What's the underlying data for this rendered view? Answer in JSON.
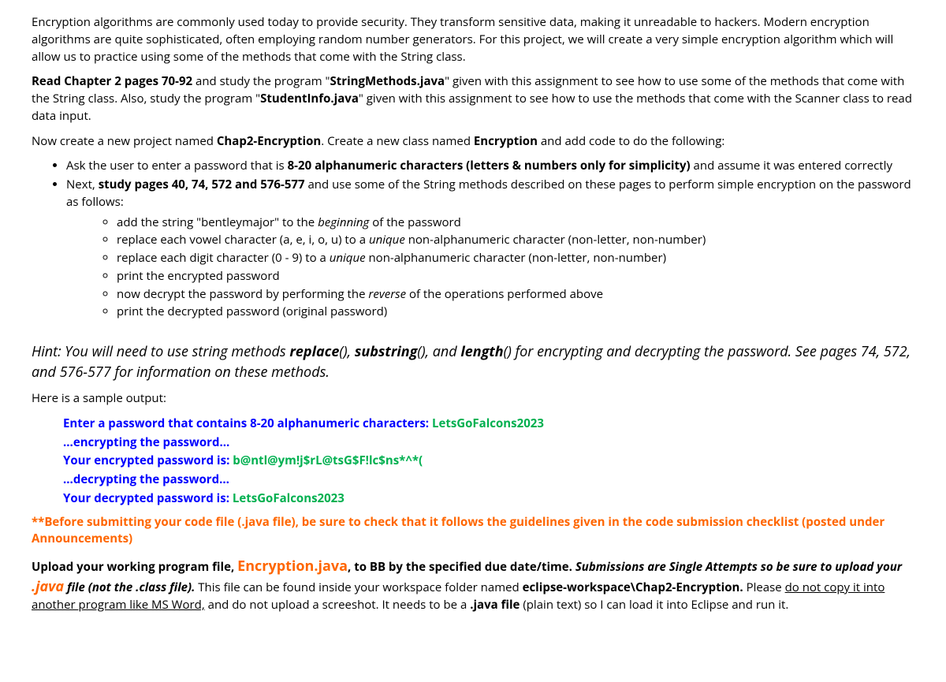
{
  "intro": {
    "p1": "Encryption algorithms are commonly used today to provide security.  They transform sensitive data, making it unreadable to hackers.  Modern encryption algorithms are quite sophisticated, often employing random number generators.  For this project, we will create a very simple encryption algorithm which will allow us to practice using some of the methods that come with the String class.",
    "p2_lead": "Read Chapter 2 pages 70-92",
    "p2_mid1": " and study the program \"",
    "p2_file1": "StringMethods.java",
    "p2_mid2": "\" given with this assignment to see how to use some of the methods that come with the String class.  Also, study the program \"",
    "p2_file2": "StudentInfo.java",
    "p2_mid3": "\" given with this assignment to see how to use the methods that come with the Scanner class to read data input.",
    "p3_a": "Now create a new project named ",
    "p3_proj": "Chap2-Encryption",
    "p3_b": ".  Create a new class named ",
    "p3_class": "Encryption",
    "p3_c": " and add code to do the following:"
  },
  "bullets": {
    "b1_a": "Ask the user to enter a password that is ",
    "b1_bold": "8-20 alphanumeric characters (letters & numbers only for simplicity)",
    "b1_c": " and assume it was entered correctly",
    "b2_a": "Next, ",
    "b2_bold": "study pages 40, 74, 572 and 576-577",
    "b2_c": " and use some of the String methods described on these pages to perform simple encryption on the password as follows:",
    "sub": [
      {
        "pre": "add the string \"bentleymajor\" to the ",
        "ital": "beginning",
        "post": " of the password"
      },
      {
        "pre": "replace each vowel character (a, e, i, o, u) to a ",
        "ital": "unique",
        "post": " non-alphanumeric character (non-letter, non-number)"
      },
      {
        "pre": "replace each digit character (0 - 9) to a ",
        "ital": "unique",
        "post": " non-alphanumeric character (non-letter, non-number)"
      },
      {
        "pre": "print the encrypted password",
        "ital": "",
        "post": ""
      },
      {
        "pre": "now decrypt the password by performing the ",
        "ital": "reverse",
        "post": " of the operations performed above"
      },
      {
        "pre": "print the decrypted password (original password)",
        "ital": "",
        "post": ""
      }
    ]
  },
  "hint": {
    "a": "Hint:  You will need to use string methods ",
    "m1": "replace",
    "p1": "()",
    "c1": ", ",
    "m2": "substring",
    "p2": "()",
    "c2": ", and ",
    "m3": "length",
    "p3": "()",
    "rest": " for encrypting and decrypting the password.  See pages 74, 572, and 576-577 for information on these methods."
  },
  "sample": {
    "heading": "Here is a sample output:",
    "l1_blue": "Enter a password that contains 8-20 alphanumeric characters:  ",
    "l1_green": "LetsGoFalcons2023",
    "l2_blue": "...encrypting the password...",
    "l3_blue": "Your encrypted password is:  ",
    "l3_green": "b@ntl@ym!j$rL@tsG$F!lc$ns*^*(",
    "l4_blue": "...decrypting the password...",
    "l5_blue": "Your decrypted password is:  ",
    "l5_green": "LetsGoFalcons2023"
  },
  "warn": "**Before submitting your code file (.java file), be sure to check that it follows the guidelines given in the code submission checklist (posted under Announcements)",
  "upload": {
    "a": "Upload your working program file, ",
    "file": "Encryption.java",
    "b": ", to BB by the specified due date/time. ",
    "bi1": "Submissions are Single Attempts so be sure to upload your ",
    "java_big": ".java",
    "bi2": " file (not the .class file).",
    "c": " This file can be found inside your workspace folder named ",
    "ws": "eclipse-workspace\\Chap2-Encryption.",
    "d": " Please ",
    "u": "do not copy it into another program like MS Word,",
    "e": " and do not upload a screeshot.  It needs to be a ",
    "javab": ".java file",
    "f": " (plain text) so I can load it into Eclipse and run it."
  }
}
